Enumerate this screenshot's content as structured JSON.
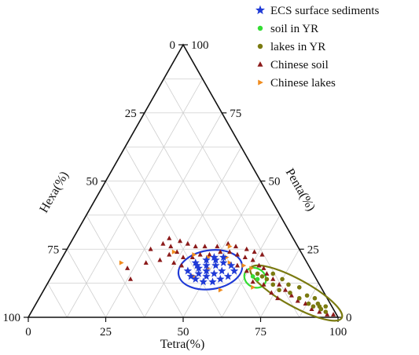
{
  "chart_data": {
    "type": "ternary-scatter",
    "title": "",
    "axes": {
      "tetra": {
        "label": "Tetra(%)",
        "range": [
          0,
          100
        ],
        "ticks": [
          "0",
          "25",
          "50",
          "75",
          "100"
        ]
      },
      "penta": {
        "label": "Penta(%)",
        "range": [
          0,
          100
        ],
        "ticks": [
          "0",
          "25",
          "50",
          "75",
          "100"
        ]
      },
      "hexa": {
        "label": "Hexa(%)",
        "range": [
          0,
          100
        ],
        "ticks": [
          "0",
          "25",
          "50",
          "75",
          "100"
        ]
      }
    },
    "grid": true,
    "legend_position": "top-right",
    "series": [
      {
        "name": "ECS surface sediments",
        "marker": "star",
        "color": "#1f3ad6",
        "points": [
          [
            43,
            17,
            40
          ],
          [
            45,
            15,
            40
          ],
          [
            47,
            14,
            39
          ],
          [
            50,
            13,
            37
          ],
          [
            53,
            13,
            34
          ],
          [
            55,
            14,
            31
          ],
          [
            57,
            15,
            28
          ],
          [
            58,
            17,
            25
          ],
          [
            56,
            19,
            25
          ],
          [
            53,
            20,
            27
          ],
          [
            50,
            21,
            29
          ],
          [
            47,
            21,
            32
          ],
          [
            44,
            20,
            36
          ],
          [
            46,
            18,
            36
          ],
          [
            49,
            17,
            34
          ],
          [
            52,
            16,
            32
          ],
          [
            54,
            17,
            29
          ],
          [
            51,
            19,
            30
          ],
          [
            48,
            19,
            33
          ],
          [
            45,
            19,
            36
          ],
          [
            50,
            15,
            35
          ],
          [
            49,
            22,
            29
          ],
          [
            52,
            22,
            26
          ],
          [
            47,
            16,
            37
          ]
        ]
      },
      {
        "name": "soil in YR",
        "marker": "circle",
        "color": "#33dd33",
        "points": [
          [
            65,
            15,
            20
          ],
          [
            67,
            14,
            19
          ]
        ]
      },
      {
        "name": "lakes in YR",
        "marker": "circle",
        "color": "#7a7a10",
        "points": [
          [
            66,
            16,
            18
          ],
          [
            68,
            15,
            17
          ],
          [
            70,
            14,
            16
          ],
          [
            71,
            16,
            13
          ],
          [
            73,
            12,
            15
          ],
          [
            75,
            14,
            11
          ],
          [
            76,
            10,
            14
          ],
          [
            78,
            12,
            10
          ],
          [
            80,
            9,
            11
          ],
          [
            82,
            11,
            7
          ],
          [
            84,
            7,
            9
          ],
          [
            86,
            8,
            6
          ],
          [
            88,
            5,
            7
          ],
          [
            89,
            7,
            4
          ],
          [
            90,
            4,
            6
          ],
          [
            91,
            5,
            4
          ],
          [
            92,
            4,
            4
          ],
          [
            93,
            3,
            4
          ],
          [
            94,
            4,
            2
          ],
          [
            95,
            2,
            3
          ]
        ]
      },
      {
        "name": "Chinese soil",
        "marker": "triangle",
        "color": "#8b1a1a",
        "points": [
          [
            27,
            25,
            48
          ],
          [
            30,
            27,
            43
          ],
          [
            33,
            26,
            41
          ],
          [
            36,
            24,
            40
          ],
          [
            39,
            22,
            39
          ],
          [
            42,
            22,
            36
          ],
          [
            44,
            23,
            33
          ],
          [
            47,
            23,
            30
          ],
          [
            50,
            24,
            26
          ],
          [
            53,
            24,
            23
          ],
          [
            56,
            23,
            21
          ],
          [
            59,
            22,
            19
          ],
          [
            62,
            21,
            17
          ],
          [
            65,
            19,
            16
          ],
          [
            67,
            18,
            15
          ],
          [
            69,
            16,
            15
          ],
          [
            72,
            14,
            14
          ],
          [
            75,
            12,
            13
          ],
          [
            78,
            10,
            12
          ],
          [
            81,
            8,
            11
          ],
          [
            84,
            6,
            10
          ],
          [
            87,
            5,
            8
          ],
          [
            90,
            3,
            7
          ],
          [
            93,
            2,
            5
          ],
          [
            96,
            1,
            3
          ],
          [
            98,
            1,
            1
          ],
          [
            31,
            29,
            40
          ],
          [
            35,
            28,
            37
          ],
          [
            38,
            27,
            35
          ],
          [
            41,
            26,
            33
          ],
          [
            44,
            26,
            30
          ],
          [
            48,
            26,
            26
          ],
          [
            51,
            27,
            22
          ],
          [
            54,
            26,
            20
          ],
          [
            58,
            25,
            17
          ],
          [
            61,
            24,
            15
          ],
          [
            64,
            23,
            13
          ],
          [
            34,
            23,
            43
          ],
          [
            37,
            20,
            43
          ],
          [
            40,
            19,
            41
          ],
          [
            28,
            20,
            52
          ],
          [
            32,
            21,
            47
          ],
          [
            23,
            18,
            59
          ],
          [
            26,
            14,
            60
          ],
          [
            58,
            19,
            23
          ],
          [
            62,
            17,
            21
          ],
          [
            66,
            13,
            21
          ],
          [
            70,
            12,
            18
          ],
          [
            74,
            9,
            17
          ],
          [
            77,
            7,
            16
          ]
        ]
      },
      {
        "name": "Chinese lakes",
        "marker": "right-triangle",
        "color": "#f08c1e",
        "points": [
          [
            20,
            20,
            60
          ],
          [
            35,
            24,
            41
          ],
          [
            42,
            23,
            35
          ],
          [
            47,
            22,
            31
          ],
          [
            53,
            22,
            25
          ],
          [
            55,
            20,
            25
          ],
          [
            60,
            19,
            21
          ],
          [
            49,
            18,
            33
          ],
          [
            46,
            15,
            39
          ],
          [
            57,
            10,
            33
          ],
          [
            63,
            18,
            19
          ],
          [
            67,
            11,
            22
          ],
          [
            52,
            26,
            22
          ]
        ]
      }
    ],
    "annotations": [
      {
        "shape": "ellipse",
        "color": "#1f3ad6",
        "encloses": "ECS surface sediments"
      },
      {
        "shape": "ellipse",
        "color": "#33dd33",
        "encloses": "soil in YR"
      },
      {
        "shape": "ellipse",
        "color": "#7a7a10",
        "encloses": "lakes in YR"
      }
    ]
  }
}
